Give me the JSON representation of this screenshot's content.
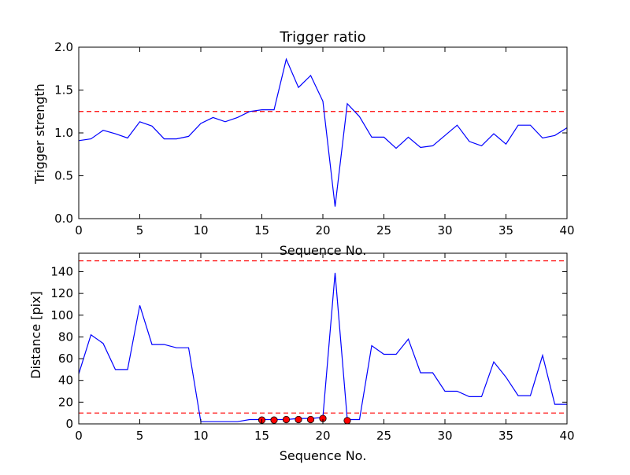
{
  "chart_data": [
    {
      "type": "line",
      "title": "Trigger ratio",
      "xlabel": "Sequence No.",
      "ylabel": "Trigger strength",
      "xlim": [
        0,
        40
      ],
      "ylim": [
        0,
        2.0
      ],
      "xticks": [
        "0",
        "5",
        "10",
        "15",
        "20",
        "25",
        "30",
        "35",
        "40"
      ],
      "yticks": [
        "0.0",
        "0.5",
        "1.0",
        "1.5",
        "2.0"
      ],
      "series": [
        {
          "color": "#0000ff",
          "x": [
            0,
            1,
            2,
            3,
            4,
            5,
            6,
            7,
            8,
            9,
            10,
            11,
            12,
            13,
            14,
            15,
            16,
            17,
            18,
            19,
            20,
            21,
            22,
            23,
            24,
            25,
            26,
            27,
            28,
            29,
            30,
            31,
            32,
            33,
            34,
            35,
            36,
            37,
            38,
            39,
            40
          ],
          "values": [
            0.91,
            0.93,
            1.03,
            0.99,
            0.94,
            1.13,
            1.08,
            0.93,
            0.93,
            0.96,
            1.11,
            1.18,
            1.13,
            1.18,
            1.25,
            1.27,
            1.27,
            1.86,
            1.53,
            1.67,
            1.37,
            0.14,
            1.34,
            1.19,
            0.95,
            0.95,
            0.82,
            0.95,
            0.83,
            0.85,
            0.97,
            1.09,
            0.9,
            0.85,
            0.99,
            0.87,
            1.09,
            1.09,
            0.94,
            0.97,
            1.06
          ]
        }
      ],
      "reference_lines": [
        {
          "y": 1.25,
          "color": "#ff0000",
          "style": "dashed"
        }
      ]
    },
    {
      "type": "line",
      "xlabel": "Sequence No.",
      "ylabel": "Distance [pix]",
      "xlim": [
        0,
        40
      ],
      "ylim": [
        0,
        157
      ],
      "xticks": [
        "0",
        "5",
        "10",
        "15",
        "20",
        "25",
        "30",
        "35",
        "40"
      ],
      "yticks": [
        "0",
        "20",
        "40",
        "60",
        "80",
        "100",
        "120",
        "140"
      ],
      "series": [
        {
          "color": "#0000ff",
          "x": [
            0,
            1,
            2,
            3,
            4,
            5,
            6,
            7,
            8,
            9,
            10,
            11,
            12,
            13,
            14,
            15,
            16,
            17,
            18,
            19,
            20,
            21,
            22,
            23,
            24,
            25,
            26,
            27,
            28,
            29,
            30,
            31,
            32,
            33,
            34,
            35,
            36,
            37,
            38,
            39,
            40
          ],
          "values": [
            46,
            82,
            74,
            50,
            50,
            109,
            73,
            73,
            70,
            70,
            2,
            2,
            2,
            2,
            4,
            4,
            4,
            4,
            5,
            5,
            6,
            139,
            4,
            4,
            72,
            64,
            64,
            78,
            47,
            47,
            30,
            30,
            25,
            25,
            57,
            43,
            26,
            26,
            63,
            18,
            18
          ]
        }
      ],
      "markers": {
        "color": "#ff0000",
        "x": [
          15,
          16,
          17,
          18,
          19,
          20,
          22
        ],
        "values": [
          3.5,
          3.5,
          4,
          4,
          4,
          5,
          3
        ]
      },
      "reference_lines": [
        {
          "y": 150,
          "color": "#ff0000",
          "style": "dashed"
        },
        {
          "y": 10,
          "color": "#ff0000",
          "style": "dashed"
        }
      ]
    }
  ]
}
